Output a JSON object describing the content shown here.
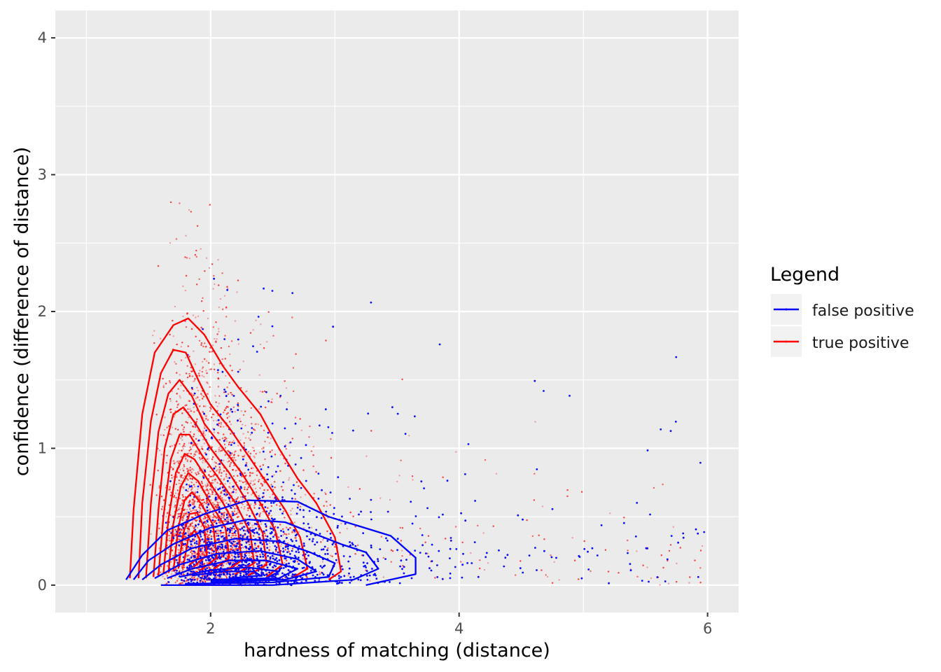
{
  "chart_data": {
    "type": "scatter",
    "title": "",
    "xlabel": "hardness of matching (distance)",
    "ylabel": "confidence (difference of distance)",
    "xlim": [
      0.75,
      6.25
    ],
    "ylim": [
      -0.2,
      4.2
    ],
    "x_ticks": [
      2,
      4,
      6
    ],
    "y_ticks": [
      0,
      1,
      2,
      3,
      4
    ],
    "grid": true,
    "legend_position": "right",
    "legend_title": "Legend",
    "series": [
      {
        "name": "false positive",
        "color": "#0000ff",
        "contours": [
          [
            [
              1.32,
              0.04
            ],
            [
              1.45,
              0.22
            ],
            [
              1.65,
              0.4
            ],
            [
              1.95,
              0.52
            ],
            [
              2.3,
              0.62
            ],
            [
              2.7,
              0.61
            ],
            [
              2.95,
              0.5
            ],
            [
              3.2,
              0.43
            ],
            [
              3.45,
              0.36
            ],
            [
              3.65,
              0.2
            ],
            [
              3.65,
              0.08
            ],
            [
              3.25,
              0.0
            ]
          ],
          [
            [
              1.38,
              0.04
            ],
            [
              1.5,
              0.18
            ],
            [
              1.7,
              0.3
            ],
            [
              2.0,
              0.42
            ],
            [
              2.3,
              0.48
            ],
            [
              2.6,
              0.46
            ],
            [
              2.85,
              0.37
            ],
            [
              3.05,
              0.3
            ],
            [
              3.25,
              0.24
            ],
            [
              3.35,
              0.12
            ],
            [
              3.15,
              0.04
            ],
            [
              2.5,
              0.0
            ],
            [
              1.6,
              0.0
            ]
          ],
          [
            [
              1.45,
              0.04
            ],
            [
              1.6,
              0.15
            ],
            [
              1.85,
              0.27
            ],
            [
              2.2,
              0.34
            ],
            [
              2.55,
              0.32
            ],
            [
              2.8,
              0.24
            ],
            [
              3.0,
              0.16
            ],
            [
              2.95,
              0.06
            ],
            [
              2.5,
              0.02
            ],
            [
              1.8,
              0.01
            ]
          ],
          [
            [
              1.55,
              0.05
            ],
            [
              1.75,
              0.15
            ],
            [
              2.05,
              0.23
            ],
            [
              2.4,
              0.25
            ],
            [
              2.7,
              0.19
            ],
            [
              2.85,
              0.1
            ],
            [
              2.6,
              0.04
            ],
            [
              2.0,
              0.02
            ]
          ],
          [
            [
              1.65,
              0.05
            ],
            [
              1.85,
              0.12
            ],
            [
              2.15,
              0.18
            ],
            [
              2.45,
              0.18
            ],
            [
              2.7,
              0.12
            ],
            [
              2.55,
              0.05
            ],
            [
              2.0,
              0.03
            ]
          ],
          [
            [
              1.75,
              0.06
            ],
            [
              2.0,
              0.11
            ],
            [
              2.3,
              0.13
            ],
            [
              2.55,
              0.1
            ],
            [
              2.45,
              0.05
            ],
            [
              2.0,
              0.04
            ]
          ],
          [
            [
              1.85,
              0.07
            ],
            [
              2.1,
              0.1
            ],
            [
              2.35,
              0.1
            ],
            [
              2.4,
              0.07
            ],
            [
              2.15,
              0.05
            ]
          ]
        ]
      },
      {
        "name": "true positive",
        "color": "#ff0000",
        "contours": [
          [
            [
              1.35,
              0.05
            ],
            [
              1.38,
              0.55
            ],
            [
              1.45,
              1.25
            ],
            [
              1.55,
              1.7
            ],
            [
              1.7,
              1.9
            ],
            [
              1.82,
              1.95
            ],
            [
              1.95,
              1.83
            ],
            [
              2.1,
              1.6
            ],
            [
              2.22,
              1.45
            ],
            [
              2.4,
              1.25
            ],
            [
              2.55,
              1.0
            ],
            [
              2.7,
              0.78
            ],
            [
              2.85,
              0.6
            ],
            [
              3.0,
              0.35
            ],
            [
              3.05,
              0.1
            ],
            [
              2.95,
              0.04
            ]
          ],
          [
            [
              1.42,
              0.05
            ],
            [
              1.45,
              0.6
            ],
            [
              1.52,
              1.2
            ],
            [
              1.6,
              1.55
            ],
            [
              1.7,
              1.72
            ],
            [
              1.8,
              1.7
            ],
            [
              1.9,
              1.5
            ],
            [
              2.0,
              1.32
            ],
            [
              2.15,
              1.15
            ],
            [
              2.3,
              0.95
            ],
            [
              2.45,
              0.75
            ],
            [
              2.6,
              0.55
            ],
            [
              2.72,
              0.35
            ],
            [
              2.78,
              0.12
            ],
            [
              2.65,
              0.05
            ]
          ],
          [
            [
              1.48,
              0.05
            ],
            [
              1.52,
              0.6
            ],
            [
              1.58,
              1.12
            ],
            [
              1.66,
              1.4
            ],
            [
              1.75,
              1.5
            ],
            [
              1.85,
              1.38
            ],
            [
              1.95,
              1.18
            ],
            [
              2.1,
              1.0
            ],
            [
              2.25,
              0.82
            ],
            [
              2.4,
              0.6
            ],
            [
              2.52,
              0.4
            ],
            [
              2.58,
              0.15
            ],
            [
              2.45,
              0.06
            ]
          ],
          [
            [
              1.54,
              0.06
            ],
            [
              1.58,
              0.55
            ],
            [
              1.63,
              1.0
            ],
            [
              1.7,
              1.25
            ],
            [
              1.78,
              1.3
            ],
            [
              1.88,
              1.18
            ],
            [
              2.0,
              1.0
            ],
            [
              2.15,
              0.82
            ],
            [
              2.3,
              0.6
            ],
            [
              2.42,
              0.38
            ],
            [
              2.45,
              0.15
            ],
            [
              2.3,
              0.07
            ]
          ],
          [
            [
              1.58,
              0.07
            ],
            [
              1.62,
              0.5
            ],
            [
              1.68,
              0.92
            ],
            [
              1.75,
              1.1
            ],
            [
              1.83,
              1.1
            ],
            [
              1.93,
              0.95
            ],
            [
              2.05,
              0.8
            ],
            [
              2.2,
              0.6
            ],
            [
              2.32,
              0.38
            ],
            [
              2.35,
              0.16
            ],
            [
              2.2,
              0.08
            ]
          ],
          [
            [
              1.62,
              0.08
            ],
            [
              1.66,
              0.48
            ],
            [
              1.72,
              0.82
            ],
            [
              1.79,
              0.96
            ],
            [
              1.87,
              0.92
            ],
            [
              1.97,
              0.78
            ],
            [
              2.1,
              0.6
            ],
            [
              2.22,
              0.4
            ],
            [
              2.25,
              0.18
            ],
            [
              2.1,
              0.09
            ]
          ],
          [
            [
              1.66,
              0.09
            ],
            [
              1.7,
              0.45
            ],
            [
              1.76,
              0.72
            ],
            [
              1.82,
              0.82
            ],
            [
              1.9,
              0.76
            ],
            [
              2.0,
              0.6
            ],
            [
              2.12,
              0.42
            ],
            [
              2.15,
              0.2
            ],
            [
              2.0,
              0.1
            ]
          ],
          [
            [
              1.7,
              0.1
            ],
            [
              1.74,
              0.42
            ],
            [
              1.79,
              0.62
            ],
            [
              1.85,
              0.68
            ],
            [
              1.92,
              0.6
            ],
            [
              2.02,
              0.44
            ],
            [
              2.05,
              0.2
            ],
            [
              1.92,
              0.11
            ]
          ],
          [
            [
              1.74,
              0.12
            ],
            [
              1.78,
              0.38
            ],
            [
              1.83,
              0.52
            ],
            [
              1.89,
              0.53
            ],
            [
              1.95,
              0.42
            ],
            [
              1.97,
              0.22
            ],
            [
              1.86,
              0.13
            ]
          ],
          [
            [
              1.78,
              0.14
            ],
            [
              1.82,
              0.34
            ],
            [
              1.87,
              0.4
            ],
            [
              1.91,
              0.34
            ],
            [
              1.9,
              0.2
            ],
            [
              1.83,
              0.15
            ]
          ]
        ]
      }
    ]
  }
}
